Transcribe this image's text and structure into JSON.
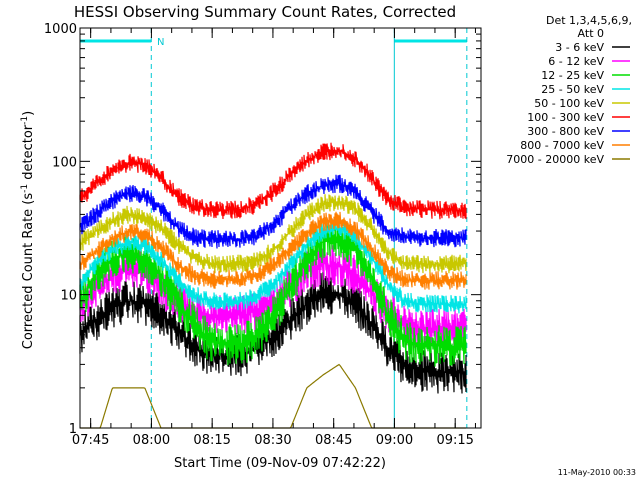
{
  "chart_data": {
    "type": "line",
    "title": "HESSI Observing Summary Count Rates, Corrected",
    "xlabel": "Start Time (09-Nov-09 07:42:22)",
    "ylabel_parts": [
      "Corrected Count Rate (s",
      "-1",
      " detector",
      "-1",
      ")"
    ],
    "yscale": "log",
    "ylim": [
      1,
      1000
    ],
    "xlim_minutes": [
      0,
      99
    ],
    "x_ticks": [
      "07:45",
      "08:00",
      "08:15",
      "08:30",
      "08:45",
      "09:00",
      "09:15"
    ],
    "x_tick_minutes": [
      2.63,
      17.63,
      32.63,
      47.63,
      62.63,
      77.63,
      92.63
    ],
    "y_ticks": [
      "1",
      "10",
      "100",
      "1000"
    ],
    "y_tick_values": [
      1,
      10,
      100,
      1000
    ],
    "legend_header": [
      "Det 1,3,4,5,6,9,",
      "Att 0"
    ],
    "legend_position": "right",
    "timestamp": "11-May-2010 00:33",
    "night_intervals": [
      {
        "start_min": 0,
        "end_min": 17.6
      },
      {
        "start_min": 77.6,
        "end_min": 95.5
      }
    ],
    "saa_flag_label": "N",
    "series": [
      {
        "name": "3 - 6 keV",
        "color": "#000000",
        "x": [
          0,
          4,
          8,
          12,
          16,
          20,
          24,
          28,
          32,
          36,
          40,
          44,
          48,
          52,
          56,
          60,
          64,
          68,
          72,
          76,
          80,
          84,
          88,
          92,
          95.5
        ],
        "y": [
          5,
          6.5,
          8,
          9,
          8.5,
          7,
          5.5,
          4,
          3.5,
          3.5,
          3.5,
          4,
          5,
          6.5,
          8.5,
          10.5,
          10,
          8.5,
          6,
          4,
          3,
          2.7,
          2.6,
          2.6,
          2.6
        ]
      },
      {
        "name": "6 - 12 keV",
        "color": "#ff00ff",
        "x": [
          0,
          4,
          8,
          12,
          16,
          20,
          24,
          28,
          32,
          36,
          40,
          44,
          48,
          52,
          56,
          60,
          64,
          68,
          72,
          76,
          80,
          84,
          88,
          92,
          95.5
        ],
        "y": [
          8,
          11,
          14,
          16,
          14.5,
          11.5,
          9,
          7.5,
          7,
          7,
          7,
          7.5,
          9,
          11.5,
          15,
          17,
          16.5,
          14,
          10.5,
          7.5,
          6,
          5.6,
          5.5,
          5.5,
          5.5
        ]
      },
      {
        "name": "12 - 25 keV",
        "color": "#00dd00",
        "x": [
          0,
          4,
          8,
          12,
          16,
          20,
          24,
          28,
          32,
          36,
          40,
          44,
          48,
          52,
          56,
          60,
          64,
          68,
          72,
          76,
          80,
          84,
          88,
          92,
          95.5
        ],
        "y": [
          9,
          14,
          18,
          21,
          19,
          14,
          9,
          6,
          4.5,
          4.2,
          4.2,
          5,
          7,
          11,
          18,
          25,
          27,
          22,
          14,
          7,
          4.6,
          4.2,
          4.1,
          4.1,
          4.1
        ]
      },
      {
        "name": "25 - 50 keV",
        "color": "#00e5e5",
        "x": [
          0,
          4,
          8,
          12,
          16,
          20,
          24,
          28,
          32,
          36,
          40,
          44,
          48,
          52,
          56,
          60,
          64,
          68,
          72,
          76,
          80,
          84,
          88,
          92,
          95.5
        ],
        "y": [
          12,
          17,
          22,
          25,
          23,
          18,
          13,
          10,
          9,
          9,
          9,
          10,
          12,
          17,
          24,
          30,
          32,
          27,
          19,
          12,
          9,
          8.6,
          8.5,
          8.5,
          8.5
        ]
      },
      {
        "name": "50 - 100 keV",
        "color": "#c8c800",
        "x": [
          0,
          4,
          8,
          12,
          16,
          20,
          24,
          28,
          32,
          36,
          40,
          44,
          48,
          52,
          56,
          60,
          64,
          68,
          72,
          76,
          80,
          84,
          88,
          92,
          95.5
        ],
        "y": [
          24,
          30,
          36,
          40,
          38,
          32,
          24,
          19,
          17,
          17,
          17,
          18,
          22,
          30,
          40,
          48,
          50,
          44,
          32,
          21,
          17,
          17,
          17,
          17,
          17
        ]
      },
      {
        "name": "100 - 300 keV",
        "color": "#ff0000",
        "x": [
          0,
          4,
          8,
          12,
          16,
          20,
          24,
          28,
          32,
          36,
          40,
          44,
          48,
          52,
          56,
          60,
          64,
          68,
          72,
          76,
          80,
          84,
          88,
          92,
          95.5
        ],
        "y": [
          52,
          68,
          85,
          98,
          95,
          75,
          55,
          46,
          43,
          43,
          44,
          48,
          60,
          80,
          100,
          118,
          122,
          105,
          75,
          52,
          45,
          44,
          43,
          43,
          43
        ]
      },
      {
        "name": "300 - 800 keV",
        "color": "#0000ff",
        "x": [
          0,
          4,
          8,
          12,
          16,
          20,
          24,
          28,
          32,
          36,
          40,
          44,
          48,
          52,
          56,
          60,
          64,
          68,
          72,
          76,
          80,
          84,
          88,
          92,
          95.5
        ],
        "y": [
          32,
          40,
          50,
          58,
          55,
          44,
          32,
          27,
          26,
          26,
          26,
          28,
          34,
          45,
          57,
          66,
          68,
          60,
          42,
          30,
          27,
          26.5,
          26.5,
          26.5,
          26.5
        ]
      },
      {
        "name": "800 - 7000 keV",
        "color": "#ff7f00",
        "x": [
          0,
          4,
          8,
          12,
          16,
          20,
          24,
          28,
          32,
          36,
          40,
          44,
          48,
          52,
          56,
          60,
          64,
          68,
          72,
          76,
          80,
          84,
          88,
          92,
          95.5
        ],
        "y": [
          17,
          21,
          26,
          30,
          28,
          23,
          17,
          14,
          13,
          13,
          13,
          14,
          17,
          22,
          29,
          35,
          36,
          31,
          22,
          15,
          13,
          12.8,
          12.8,
          12.8,
          12.8
        ]
      },
      {
        "name": "7000 - 20000 keV",
        "color": "#8b7a00",
        "x": [
          0,
          5,
          8,
          12,
          16,
          20,
          24,
          28,
          32,
          36,
          40,
          44,
          48,
          52,
          56,
          60,
          64,
          68,
          72,
          76,
          80,
          84,
          88,
          92,
          95.5
        ],
        "y": [
          1,
          1,
          2,
          2,
          2,
          1,
          1,
          1,
          1,
          1,
          1,
          1,
          1,
          1,
          2,
          2.5,
          3,
          2,
          1,
          1,
          1,
          1,
          1,
          1,
          1
        ]
      }
    ]
  }
}
